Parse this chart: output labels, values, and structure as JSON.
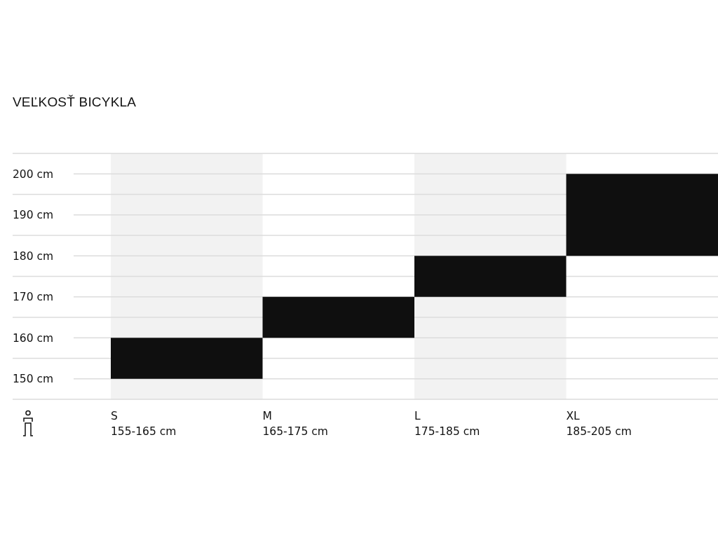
{
  "chart_data": {
    "type": "bar",
    "title": "VEĽKOSŤ BICYKLA",
    "categories": [
      "S 155-165 cm",
      "M 165-175 cm",
      "L 175-185 cm",
      "XL 185-205 cm"
    ],
    "base": [
      150,
      160,
      170,
      180
    ],
    "values": [
      10,
      10,
      10,
      20
    ],
    "color": "#0f0f0f",
    "ylim": [
      145,
      205
    ],
    "yticks": [
      {
        "value": 150,
        "label": "150 cm"
      },
      {
        "value": 155,
        "label": null
      },
      {
        "value": 160,
        "label": "160 cm"
      },
      {
        "value": 165,
        "label": null
      },
      {
        "value": 170,
        "label": "170 cm"
      },
      {
        "value": 175,
        "label": null
      },
      {
        "value": 180,
        "label": "180 cm"
      },
      {
        "value": 185,
        "label": null
      },
      {
        "value": 190,
        "label": "190 cm"
      },
      {
        "value": 195,
        "label": null
      },
      {
        "value": 200,
        "label": "200 cm"
      }
    ],
    "grid": "y"
  }
}
